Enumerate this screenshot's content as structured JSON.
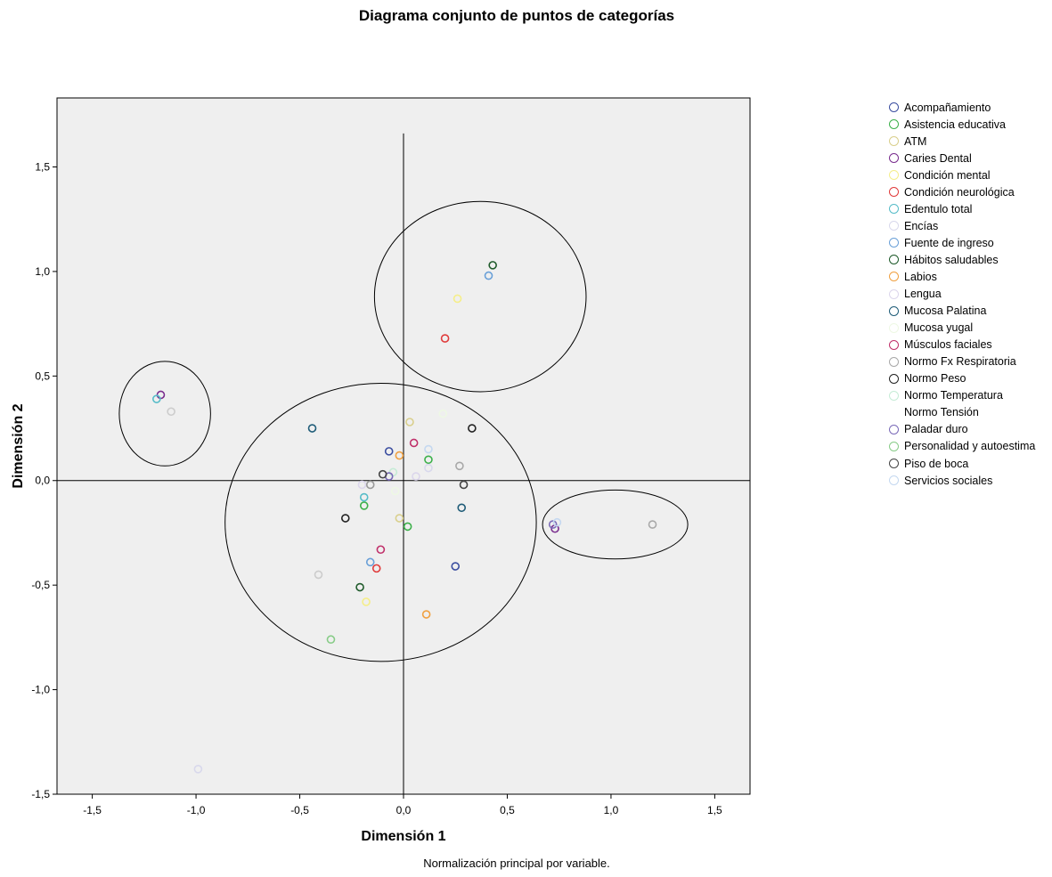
{
  "chart_data": {
    "type": "scatter",
    "title": "Diagrama conjunto de puntos de categorías",
    "xlabel": "Dimensión 1",
    "ylabel": "Dimensión 2",
    "xlim": [
      -1.67,
      1.67
    ],
    "ylim": [
      -1.5,
      1.83
    ],
    "x_ticks": [
      -1.5,
      -1.0,
      -0.5,
      0.0,
      0.5,
      1.0,
      1.5
    ],
    "x_tick_labels": [
      "-1,5",
      "-1,0",
      "-0,5",
      "0,0",
      "0,5",
      "1,0",
      "1,5"
    ],
    "y_ticks": [
      -1.5,
      -1.0,
      -0.5,
      0.0,
      0.5,
      1.0,
      1.5
    ],
    "y_tick_labels": [
      "-1,5",
      "-1,0",
      "-0,5",
      "0,0",
      "0,5",
      "1,0",
      "1,5"
    ],
    "plot_background": "#efefef",
    "grid": false,
    "legend_position": "right",
    "reference_lines": {
      "x": 0,
      "y": 0
    },
    "footnote": "Normalización principal por variable.",
    "annotations": {
      "ellipses": [
        {
          "cx": -1.15,
          "cy": 0.32,
          "rx": 0.22,
          "ry": 0.25
        },
        {
          "cx": 0.37,
          "cy": 0.88,
          "rx": 0.51,
          "ry": 0.455
        },
        {
          "cx": -0.11,
          "cy": -0.2,
          "rx": 0.75,
          "ry": 0.665
        },
        {
          "cx": 1.02,
          "cy": -0.21,
          "rx": 0.35,
          "ry": 0.165
        }
      ]
    },
    "series": [
      {
        "name": "Acompañamiento",
        "color": "#3b4ea0",
        "points": [
          [
            -0.07,
            0.14
          ],
          [
            0.25,
            -0.41
          ]
        ]
      },
      {
        "name": "Asistencia educativa",
        "color": "#3cb04a",
        "points": [
          [
            0.12,
            0.1
          ],
          [
            -0.19,
            -0.12
          ],
          [
            0.02,
            -0.22
          ]
        ]
      },
      {
        "name": "ATM",
        "color": "#d9cf8c",
        "points": [
          [
            0.03,
            0.28
          ],
          [
            -0.02,
            -0.18
          ]
        ]
      },
      {
        "name": "Caries Dental",
        "color": "#7a2d8e",
        "points": [
          [
            -1.17,
            0.41
          ],
          [
            0.73,
            -0.23
          ]
        ]
      },
      {
        "name": "Condición mental",
        "color": "#f5ee8a",
        "points": [
          [
            0.26,
            0.87
          ],
          [
            -0.18,
            -0.58
          ]
        ]
      },
      {
        "name": "Condición neurológica",
        "color": "#e03a3a",
        "points": [
          [
            0.2,
            0.68
          ],
          [
            -0.13,
            -0.42
          ]
        ]
      },
      {
        "name": "Edentulo total",
        "color": "#56bcc8",
        "points": [
          [
            -1.19,
            0.39
          ],
          [
            -0.19,
            -0.08
          ]
        ]
      },
      {
        "name": "Encías",
        "color": "#d8d8ec",
        "points": [
          [
            -0.99,
            -1.38
          ],
          [
            0.12,
            0.06
          ]
        ]
      },
      {
        "name": "Fuente de ingreso",
        "color": "#6aa0d8",
        "points": [
          [
            0.41,
            0.98
          ],
          [
            -0.16,
            -0.39
          ]
        ]
      },
      {
        "name": "Hábitos saludables",
        "color": "#1e5a2a",
        "points": [
          [
            0.43,
            1.03
          ],
          [
            -0.21,
            -0.51
          ]
        ]
      },
      {
        "name": "Labios",
        "color": "#f0a040",
        "points": [
          [
            -0.02,
            0.12
          ],
          [
            0.11,
            -0.64
          ]
        ]
      },
      {
        "name": "Lengua",
        "color": "#dcd6ec",
        "points": [
          [
            0.06,
            0.02
          ],
          [
            -0.2,
            -0.02
          ]
        ]
      },
      {
        "name": "Mucosa Palatina",
        "color": "#1f5c78",
        "points": [
          [
            -0.44,
            0.25
          ],
          [
            0.28,
            -0.13
          ]
        ]
      },
      {
        "name": "Mucosa yugal",
        "color": "#eef8e4",
        "points": [
          [
            0.19,
            0.32
          ],
          [
            -0.04,
            -0.05
          ]
        ]
      },
      {
        "name": "Músculos faciales",
        "color": "#c0306a",
        "points": [
          [
            0.05,
            0.18
          ],
          [
            -0.11,
            -0.33
          ]
        ]
      },
      {
        "name": "Normo Fx Respiratoria",
        "color": "#a8a8a8",
        "points": [
          [
            0.27,
            0.07
          ],
          [
            1.2,
            -0.21
          ]
        ]
      },
      {
        "name": "Normo Peso",
        "color": "#222222",
        "points": [
          [
            0.33,
            0.25
          ],
          [
            -0.28,
            -0.18
          ]
        ]
      },
      {
        "name": "Normo Temperatura",
        "color": "#c6ecd6",
        "points": [
          [
            -0.05,
            0.04
          ]
        ]
      },
      {
        "name": "Normo Tensión",
        "color": "#ffffff",
        "points": []
      },
      {
        "name": "Paladar duro",
        "color": "#7a6ab8",
        "points": [
          [
            -0.07,
            0.02
          ],
          [
            0.72,
            -0.21
          ]
        ]
      },
      {
        "name": "Personalidad y autoestima",
        "color": "#88cc88",
        "points": [
          [
            -0.35,
            -0.76
          ]
        ]
      },
      {
        "name": "Piso de boca",
        "color": "#444444",
        "points": [
          [
            -0.1,
            0.03
          ],
          [
            0.29,
            -0.02
          ]
        ]
      },
      {
        "name": "Servicios sociales",
        "color": "#c4d8f0",
        "points": [
          [
            0.12,
            0.15
          ],
          [
            0.74,
            -0.2
          ]
        ]
      },
      {
        "name": "",
        "color": "#cccccc",
        "points": [
          [
            -1.12,
            0.33
          ],
          [
            -0.41,
            -0.45
          ]
        ]
      },
      {
        "name": "",
        "color": "#9a9a9a",
        "points": [
          [
            -0.16,
            -0.02
          ]
        ]
      }
    ]
  }
}
